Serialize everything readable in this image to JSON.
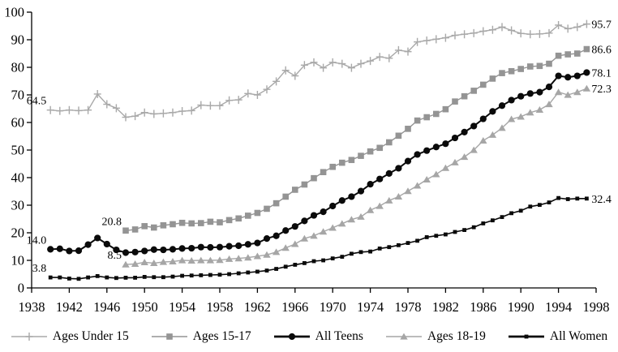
{
  "chart_data": {
    "type": "line",
    "title": "",
    "grid": false,
    "x_axis": {
      "min": 1938,
      "max": 1998,
      "tick_step": 4,
      "tick_labels": [
        "1938",
        "1942",
        "1946",
        "1950",
        "1954",
        "1958",
        "1962",
        "1966",
        "1970",
        "1974",
        "1978",
        "1982",
        "1986",
        "1990",
        "1994",
        "1998"
      ]
    },
    "y_axis": {
      "min": 0,
      "max": 100,
      "tick_step": 10,
      "tick_labels": [
        "0",
        "10",
        "20",
        "30",
        "40",
        "50",
        "60",
        "70",
        "80",
        "90",
        "100"
      ]
    },
    "series": [
      {
        "name": "Ages Under 15",
        "color": "#a9a9a9",
        "marker": "plus",
        "line_width": 1.4,
        "start_year": 1940,
        "values": [
          64.5,
          64.2,
          64.5,
          64.3,
          64.5,
          70.3,
          66.6,
          65.2,
          61.9,
          62.3,
          63.6,
          63.1,
          63.3,
          63.6,
          64.1,
          64.3,
          66.3,
          66.1,
          66.1,
          68.0,
          68.2,
          70.5,
          70.0,
          72.0,
          74.9,
          78.9,
          76.9,
          80.8,
          81.8,
          79.8,
          81.8,
          81.3,
          79.8,
          81.3,
          82.3,
          83.8,
          83.3,
          86.2,
          85.7,
          89.2,
          89.7,
          90.2,
          90.7,
          91.6,
          92.0,
          92.4,
          93.1,
          93.6,
          94.6,
          93.4,
          92.3,
          92.0,
          92.1,
          92.4,
          95.3,
          94.0,
          94.6,
          95.7
        ]
      },
      {
        "name": "Ages 15-17",
        "color": "#949494",
        "marker": "square",
        "line_width": 1.4,
        "start_year": 1948,
        "values": [
          20.8,
          21.2,
          22.4,
          21.9,
          22.7,
          23.1,
          23.6,
          23.4,
          23.5,
          24.0,
          23.8,
          24.6,
          25.2,
          26.2,
          27.2,
          28.7,
          30.7,
          33.1,
          35.6,
          37.5,
          39.8,
          42.0,
          43.9,
          45.4,
          46.4,
          47.9,
          49.5,
          50.8,
          52.8,
          55.2,
          57.7,
          60.7,
          61.9,
          63.1,
          64.8,
          67.6,
          69.5,
          71.5,
          73.7,
          75.9,
          77.9,
          78.6,
          79.4,
          80.3,
          80.5,
          81.3,
          84.2,
          84.7,
          85.0,
          86.6
        ]
      },
      {
        "name": "All Teens",
        "color": "#0a0a0a",
        "marker": "circle",
        "line_width": 2.0,
        "start_year": 1940,
        "values": [
          14.0,
          14.2,
          13.4,
          13.5,
          15.7,
          18.1,
          15.9,
          13.8,
          12.8,
          13.0,
          13.4,
          13.9,
          13.8,
          14.0,
          14.3,
          14.4,
          14.8,
          14.7,
          14.8,
          15.1,
          15.3,
          15.8,
          16.3,
          17.9,
          18.9,
          20.8,
          22.3,
          24.3,
          26.3,
          27.6,
          29.7,
          31.7,
          33.1,
          35.1,
          37.6,
          39.5,
          41.5,
          43.4,
          46.0,
          48.4,
          49.8,
          51.1,
          52.3,
          54.4,
          56.5,
          58.7,
          61.3,
          64.0,
          66.1,
          68.1,
          69.5,
          70.5,
          71.0,
          72.9,
          76.9,
          76.4,
          76.9,
          78.1
        ]
      },
      {
        "name": "Ages 18-19",
        "color": "#a6a6a6",
        "marker": "triangle",
        "line_width": 1.4,
        "start_year": 1948,
        "values": [
          8.5,
          8.7,
          9.3,
          9.0,
          9.4,
          9.6,
          10.0,
          9.9,
          10.0,
          10.0,
          10.1,
          10.5,
          10.7,
          11.0,
          11.5,
          12.0,
          13.0,
          14.5,
          15.9,
          17.9,
          18.9,
          20.4,
          21.8,
          23.3,
          24.8,
          25.8,
          28.2,
          29.7,
          31.7,
          33.1,
          35.1,
          37.1,
          39.3,
          41.2,
          43.5,
          45.5,
          47.5,
          50.0,
          53.4,
          55.5,
          58.0,
          61.2,
          62.1,
          63.6,
          64.6,
          66.6,
          71.0,
          70.0,
          71.0,
          72.3
        ]
      },
      {
        "name": "All Women",
        "color": "#0a0a0a",
        "marker": "small-square",
        "line_width": 1.6,
        "start_year": 1940,
        "values": [
          3.8,
          3.8,
          3.4,
          3.3,
          3.8,
          4.3,
          3.8,
          3.6,
          3.7,
          3.7,
          4.0,
          3.9,
          3.9,
          4.1,
          4.4,
          4.5,
          4.6,
          4.7,
          4.8,
          5.0,
          5.3,
          5.6,
          5.9,
          6.3,
          6.9,
          7.7,
          8.4,
          9.0,
          9.7,
          10.0,
          10.7,
          11.3,
          12.4,
          13.0,
          13.2,
          14.3,
          14.8,
          15.5,
          16.3,
          17.1,
          18.4,
          18.9,
          19.4,
          20.3,
          21.0,
          22.0,
          23.4,
          24.5,
          25.7,
          27.1,
          28.0,
          29.5,
          30.1,
          31.0,
          32.6,
          32.2,
          32.4,
          32.4
        ]
      }
    ],
    "point_labels": [
      {
        "text": "64.5",
        "series": "Ages Under 15",
        "year": 1940,
        "value": 64.5,
        "side": "left"
      },
      {
        "text": "14.0",
        "series": "All Teens",
        "year": 1940,
        "value": 14.0,
        "side": "left"
      },
      {
        "text": "3.8",
        "series": "All Women",
        "year": 1940,
        "value": 3.8,
        "side": "left"
      },
      {
        "text": "20.8",
        "series": "Ages 15-17",
        "year": 1948,
        "value": 20.8,
        "side": "left"
      },
      {
        "text": "8.5",
        "series": "Ages 18-19",
        "year": 1948,
        "value": 8.5,
        "side": "left"
      },
      {
        "text": "95.7",
        "series": "Ages Under 15",
        "year": 1997,
        "value": 95.7,
        "side": "right"
      },
      {
        "text": "86.6",
        "series": "Ages 15-17",
        "year": 1997,
        "value": 86.6,
        "side": "right"
      },
      {
        "text": "78.1",
        "series": "All Teens",
        "year": 1997,
        "value": 78.1,
        "side": "right"
      },
      {
        "text": "72.3",
        "series": "Ages 18-19",
        "year": 1997,
        "value": 72.3,
        "side": "right"
      },
      {
        "text": "32.4",
        "series": "All Women",
        "year": 1997,
        "value": 32.4,
        "side": "right"
      }
    ],
    "legend": {
      "position": "bottom",
      "entries": [
        "Ages Under 15",
        "Ages 15-17",
        "All Teens",
        "Ages 18-19",
        "All Women"
      ]
    }
  }
}
